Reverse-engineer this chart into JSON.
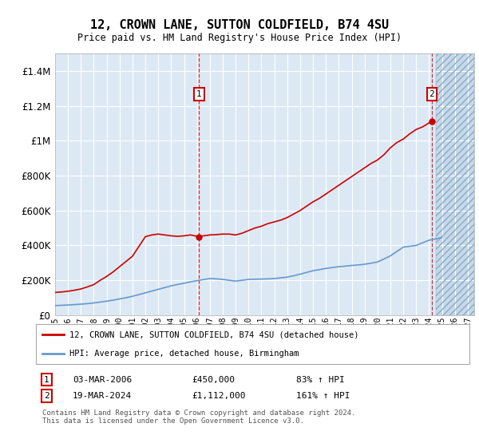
{
  "title": "12, CROWN LANE, SUTTON COLDFIELD, B74 4SU",
  "subtitle": "Price paid vs. HM Land Registry's House Price Index (HPI)",
  "plot_bg_color": "#dce9f5",
  "hatch_color": "#b8cfe0",
  "red_line_color": "#cc0000",
  "blue_line_color": "#6699cc",
  "ylim": [
    0,
    1500000
  ],
  "yticks": [
    0,
    200000,
    400000,
    600000,
    800000,
    1000000,
    1200000,
    1400000
  ],
  "ytick_labels": [
    "£0",
    "£200K",
    "£400K",
    "£600K",
    "£800K",
    "£1M",
    "£1.2M",
    "£1.4M"
  ],
  "xlim_start": 1995.0,
  "xlim_end": 2027.5,
  "sale1_x": 2006.17,
  "sale1_y": 450000,
  "sale1_label": "03-MAR-2006",
  "sale1_price": "£450,000",
  "sale1_hpi": "83% ↑ HPI",
  "sale2_x": 2024.21,
  "sale2_y": 1112000,
  "sale2_label": "19-MAR-2024",
  "sale2_price": "£1,112,000",
  "sale2_hpi": "161% ↑ HPI",
  "hpi_years": [
    1995,
    1995.5,
    1996,
    1996.5,
    1997,
    1997.5,
    1998,
    1998.5,
    1999,
    1999.5,
    2000,
    2000.5,
    2001,
    2001.5,
    2002,
    2002.5,
    2003,
    2003.5,
    2004,
    2004.5,
    2005,
    2005.5,
    2006,
    2006.5,
    2007,
    2007.5,
    2008,
    2008.5,
    2009,
    2009.5,
    2010,
    2010.5,
    2011,
    2011.5,
    2012,
    2012.5,
    2013,
    2013.5,
    2014,
    2014.5,
    2015,
    2015.5,
    2016,
    2016.5,
    2017,
    2017.5,
    2018,
    2018.5,
    2019,
    2019.5,
    2020,
    2020.5,
    2021,
    2021.5,
    2022,
    2022.5,
    2023,
    2023.5,
    2024,
    2024.5,
    2025
  ],
  "hpi_values": [
    55000,
    56500,
    58000,
    60500,
    63000,
    66000,
    70000,
    75000,
    80000,
    86000,
    93000,
    100000,
    108000,
    118000,
    128000,
    138000,
    148000,
    158000,
    168000,
    176000,
    183000,
    191000,
    198000,
    204000,
    210000,
    208000,
    205000,
    200000,
    195000,
    200000,
    205000,
    206000,
    207000,
    208000,
    210000,
    214000,
    218000,
    226000,
    235000,
    245000,
    255000,
    261000,
    268000,
    273000,
    278000,
    281000,
    285000,
    288000,
    292000,
    298000,
    305000,
    322000,
    340000,
    365000,
    390000,
    395000,
    400000,
    415000,
    430000,
    437000,
    445000
  ],
  "red_years": [
    1995,
    1995.5,
    1996,
    1996.5,
    1997,
    1997.5,
    1998,
    1998.5,
    1999,
    1999.5,
    2000,
    2000.5,
    2001,
    2001.5,
    2002,
    2002.5,
    2003,
    2003.5,
    2004,
    2004.5,
    2005,
    2005.5,
    2006.17,
    2006.5,
    2007,
    2007.5,
    2008,
    2008.5,
    2009,
    2009.5,
    2010,
    2010.5,
    2011,
    2011.5,
    2012,
    2012.5,
    2013,
    2013.5,
    2014,
    2014.5,
    2015,
    2015.5,
    2016,
    2016.5,
    2017,
    2017.5,
    2018,
    2018.5,
    2019,
    2019.5,
    2020,
    2020.5,
    2021,
    2021.5,
    2022,
    2022.5,
    2023,
    2023.5,
    2024.21
  ],
  "red_values": [
    130000,
    133000,
    137000,
    143000,
    150000,
    162000,
    175000,
    200000,
    222000,
    248000,
    278000,
    308000,
    338000,
    394000,
    450000,
    460000,
    465000,
    460000,
    455000,
    452000,
    455000,
    460000,
    450000,
    455000,
    460000,
    462000,
    465000,
    465000,
    460000,
    470000,
    485000,
    500000,
    510000,
    525000,
    535000,
    545000,
    560000,
    580000,
    600000,
    625000,
    650000,
    670000,
    695000,
    720000,
    745000,
    770000,
    795000,
    820000,
    845000,
    870000,
    890000,
    920000,
    960000,
    990000,
    1010000,
    1040000,
    1065000,
    1080000,
    1112000
  ],
  "future_start": 2024.5,
  "legend_label1": "12, CROWN LANE, SUTTON COLDFIELD, B74 4SU (detached house)",
  "legend_label2": "HPI: Average price, detached house, Birmingham",
  "footer": "Contains HM Land Registry data © Crown copyright and database right 2024.\nThis data is licensed under the Open Government Licence v3.0."
}
